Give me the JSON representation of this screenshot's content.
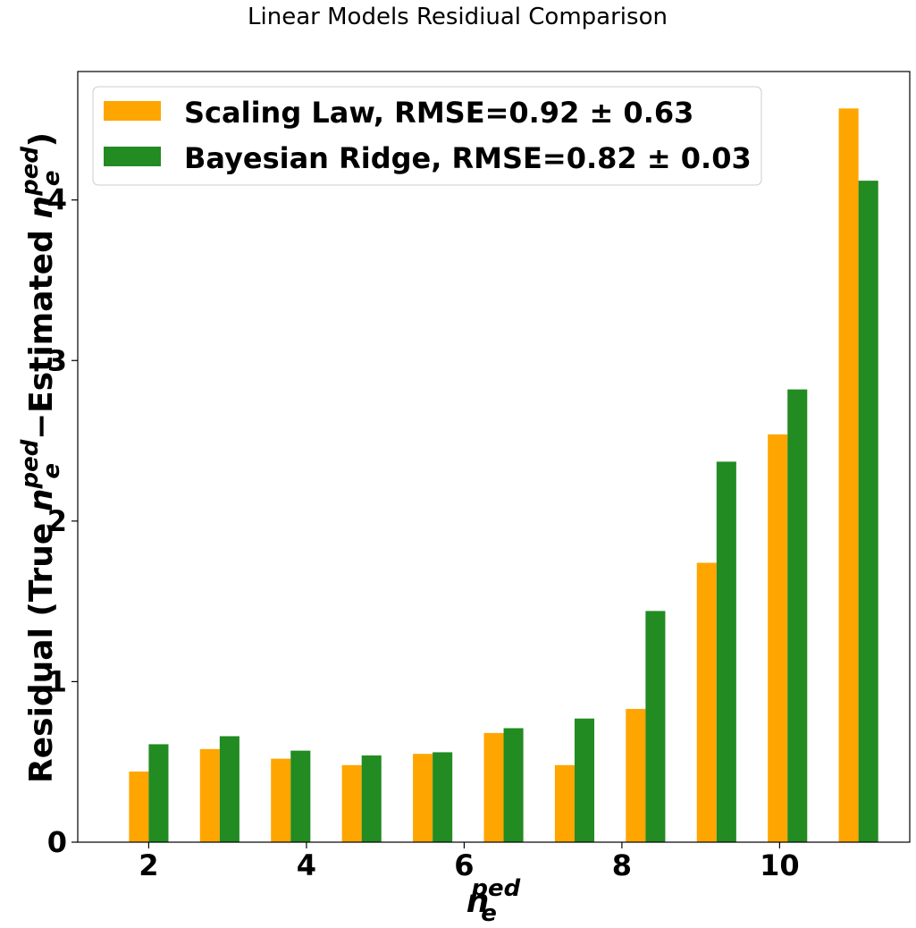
{
  "chart_data": {
    "type": "bar",
    "title": "Linear Models Residiual Comparison",
    "xlabel": {
      "base": "n",
      "sub": "e",
      "sup": "ped"
    },
    "ylabel": {
      "prefix": "Residual (True ",
      "var_base": "n",
      "var_sub": "e",
      "var_sup": "ped",
      "middle": "−Estimated ",
      "suffix": ")"
    },
    "xlim": [
      1.1,
      11.65
    ],
    "ylim": [
      0,
      4.8
    ],
    "xticks": [
      2,
      4,
      6,
      8,
      10
    ],
    "yticks": [
      0,
      1,
      2,
      3,
      4
    ],
    "x": [
      2.0,
      2.9,
      3.8,
      4.7,
      5.6,
      6.5,
      7.4,
      8.3,
      9.2,
      10.1,
      11.0
    ],
    "series": [
      {
        "name": "Scaling Law, RMSE=0.92 ± 0.63",
        "color": "#ffa500",
        "values": [
          0.44,
          0.58,
          0.52,
          0.48,
          0.55,
          0.68,
          0.48,
          0.83,
          1.74,
          2.54,
          4.57
        ]
      },
      {
        "name": "Bayesian Ridge, RMSE=0.82 ± 0.03",
        "color": "#228b22",
        "values": [
          0.61,
          0.66,
          0.57,
          0.54,
          0.56,
          0.71,
          0.77,
          1.44,
          2.37,
          2.82,
          4.12
        ]
      }
    ],
    "legend": "upper-left",
    "grid": false
  }
}
